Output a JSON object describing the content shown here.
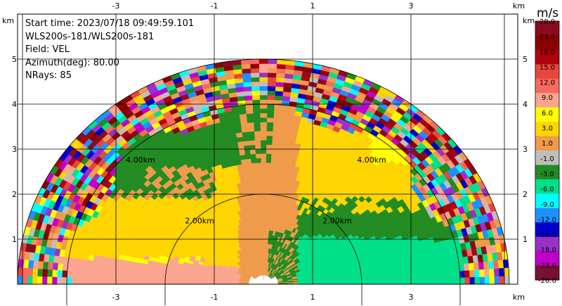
{
  "info": {
    "start_time": "Start time: 2023/07/18 09:49:59.101",
    "radar": "WLS200s-181/WLS200s-181",
    "field": "Field: VEL",
    "azimuth": "Azimuth(deg): 80.00",
    "nrays": "NRays: 85"
  },
  "colorbar": {
    "unit": "m/s",
    "labels": [
      "28.0",
      "23.0",
      "18.0",
      "15.0",
      "12.0",
      "9.0",
      "6.0",
      "3.0",
      "1.0",
      "-1.0",
      "-3.0",
      "-6.0",
      "-9.0",
      "-12.0",
      "-15.0",
      "-18.0",
      "-23.0",
      "-28.0"
    ],
    "colors": [
      "#8b0a1e",
      "#8b0000",
      "#b0000e",
      "#e8453c",
      "#f86a5e",
      "#fba48f",
      "#ffff00",
      "#ffd500",
      "#f09b4a",
      "#bebebe",
      "#228b22",
      "#00e08a",
      "#00ffff",
      "#1e90ff",
      "#0000cd",
      "#9b30c8",
      "#c000c8",
      "#7a1030"
    ]
  },
  "chart_data": {
    "type": "heatmap",
    "projection": "RHI (range-height) sector scan",
    "field": "VEL",
    "units": "m/s",
    "xlabel": "km",
    "ylabel": "km",
    "xlim": [
      -4.9,
      4.9
    ],
    "ylim": [
      0,
      5.5
    ],
    "x_ticks": [
      -3,
      -1,
      1,
      3
    ],
    "y_ticks": [
      1,
      2,
      3,
      4,
      5
    ],
    "range_rings_km": [
      2.0,
      4.0
    ],
    "ring_labels": [
      "2.00km",
      "2.00km",
      "4.00km",
      "4.00km"
    ],
    "max_range_km": 5.0,
    "grid": true,
    "regions": [
      {
        "description": "near-ground left low band",
        "velocity_ms": [
          6.0,
          9.0
        ]
      },
      {
        "description": "left lower body",
        "velocity_ms": [
          1.0,
          3.0
        ]
      },
      {
        "description": "center column",
        "velocity_ms": [
          -1.0,
          1.0
        ]
      },
      {
        "description": "upper left / right mid patches",
        "velocity_ms": [
          -6.0,
          -3.0
        ]
      },
      {
        "description": "right lower band",
        "velocity_ms": [
          -9.0,
          -6.0
        ]
      },
      {
        "description": "outer ring edge (noise)",
        "velocity_ms": [
          -28.0,
          28.0
        ]
      }
    ]
  }
}
